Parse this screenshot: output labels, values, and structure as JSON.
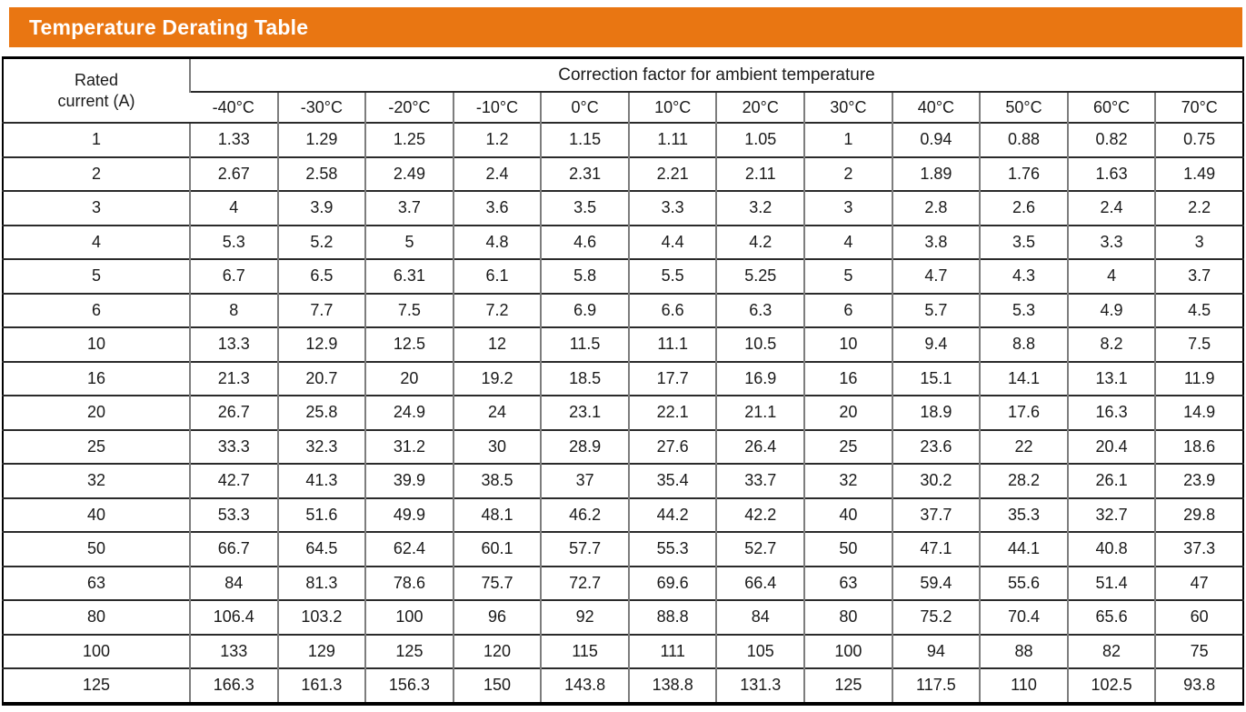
{
  "title": "Temperature Derating Table",
  "colors": {
    "title_bar_background": "#E97612",
    "title_text": "#ffffff",
    "row_line": "#2a2a2a",
    "column_line": "#7d7d7d",
    "outer_border": "#000000"
  },
  "table": {
    "rated_current_header": "Rated\ncurrent (A)",
    "span_header": "Correction factor for ambient temperature",
    "temps": [
      "-40°C",
      "-30°C",
      "-20°C",
      "-10°C",
      "0°C",
      "10°C",
      "20°C",
      "30°C",
      "40°C",
      "50°C",
      "60°C",
      "70°C"
    ],
    "rows": [
      {
        "current": "1",
        "values": [
          "1.33",
          "1.29",
          "1.25",
          "1.2",
          "1.15",
          "1.11",
          "1.05",
          "1",
          "0.94",
          "0.88",
          "0.82",
          "0.75"
        ]
      },
      {
        "current": "2",
        "values": [
          "2.67",
          "2.58",
          "2.49",
          "2.4",
          "2.31",
          "2.21",
          "2.11",
          "2",
          "1.89",
          "1.76",
          "1.63",
          "1.49"
        ]
      },
      {
        "current": "3",
        "values": [
          "4",
          "3.9",
          "3.7",
          "3.6",
          "3.5",
          "3.3",
          "3.2",
          "3",
          "2.8",
          "2.6",
          "2.4",
          "2.2"
        ]
      },
      {
        "current": "4",
        "values": [
          "5.3",
          "5.2",
          "5",
          "4.8",
          "4.6",
          "4.4",
          "4.2",
          "4",
          "3.8",
          "3.5",
          "3.3",
          "3"
        ]
      },
      {
        "current": "5",
        "values": [
          "6.7",
          "6.5",
          "6.31",
          "6.1",
          "5.8",
          "5.5",
          "5.25",
          "5",
          "4.7",
          "4.3",
          "4",
          "3.7"
        ]
      },
      {
        "current": "6",
        "values": [
          "8",
          "7.7",
          "7.5",
          "7.2",
          "6.9",
          "6.6",
          "6.3",
          "6",
          "5.7",
          "5.3",
          "4.9",
          "4.5"
        ]
      },
      {
        "current": "10",
        "values": [
          "13.3",
          "12.9",
          "12.5",
          "12",
          "11.5",
          "11.1",
          "10.5",
          "10",
          "9.4",
          "8.8",
          "8.2",
          "7.5"
        ]
      },
      {
        "current": "16",
        "values": [
          "21.3",
          "20.7",
          "20",
          "19.2",
          "18.5",
          "17.7",
          "16.9",
          "16",
          "15.1",
          "14.1",
          "13.1",
          "11.9"
        ]
      },
      {
        "current": "20",
        "values": [
          "26.7",
          "25.8",
          "24.9",
          "24",
          "23.1",
          "22.1",
          "21.1",
          "20",
          "18.9",
          "17.6",
          "16.3",
          "14.9"
        ]
      },
      {
        "current": "25",
        "values": [
          "33.3",
          "32.3",
          "31.2",
          "30",
          "28.9",
          "27.6",
          "26.4",
          "25",
          "23.6",
          "22",
          "20.4",
          "18.6"
        ]
      },
      {
        "current": "32",
        "values": [
          "42.7",
          "41.3",
          "39.9",
          "38.5",
          "37",
          "35.4",
          "33.7",
          "32",
          "30.2",
          "28.2",
          "26.1",
          "23.9"
        ]
      },
      {
        "current": "40",
        "values": [
          "53.3",
          "51.6",
          "49.9",
          "48.1",
          "46.2",
          "44.2",
          "42.2",
          "40",
          "37.7",
          "35.3",
          "32.7",
          "29.8"
        ]
      },
      {
        "current": "50",
        "values": [
          "66.7",
          "64.5",
          "62.4",
          "60.1",
          "57.7",
          "55.3",
          "52.7",
          "50",
          "47.1",
          "44.1",
          "40.8",
          "37.3"
        ]
      },
      {
        "current": "63",
        "values": [
          "84",
          "81.3",
          "78.6",
          "75.7",
          "72.7",
          "69.6",
          "66.4",
          "63",
          "59.4",
          "55.6",
          "51.4",
          "47"
        ]
      },
      {
        "current": "80",
        "values": [
          "106.4",
          "103.2",
          "100",
          "96",
          "92",
          "88.8",
          "84",
          "80",
          "75.2",
          "70.4",
          "65.6",
          "60"
        ]
      },
      {
        "current": "100",
        "values": [
          "133",
          "129",
          "125",
          "120",
          "115",
          "111",
          "105",
          "100",
          "94",
          "88",
          "82",
          "75"
        ]
      },
      {
        "current": "125",
        "values": [
          "166.3",
          "161.3",
          "156.3",
          "150",
          "143.8",
          "138.8",
          "131.3",
          "125",
          "117.5",
          "110",
          "102.5",
          "93.8"
        ]
      }
    ]
  }
}
